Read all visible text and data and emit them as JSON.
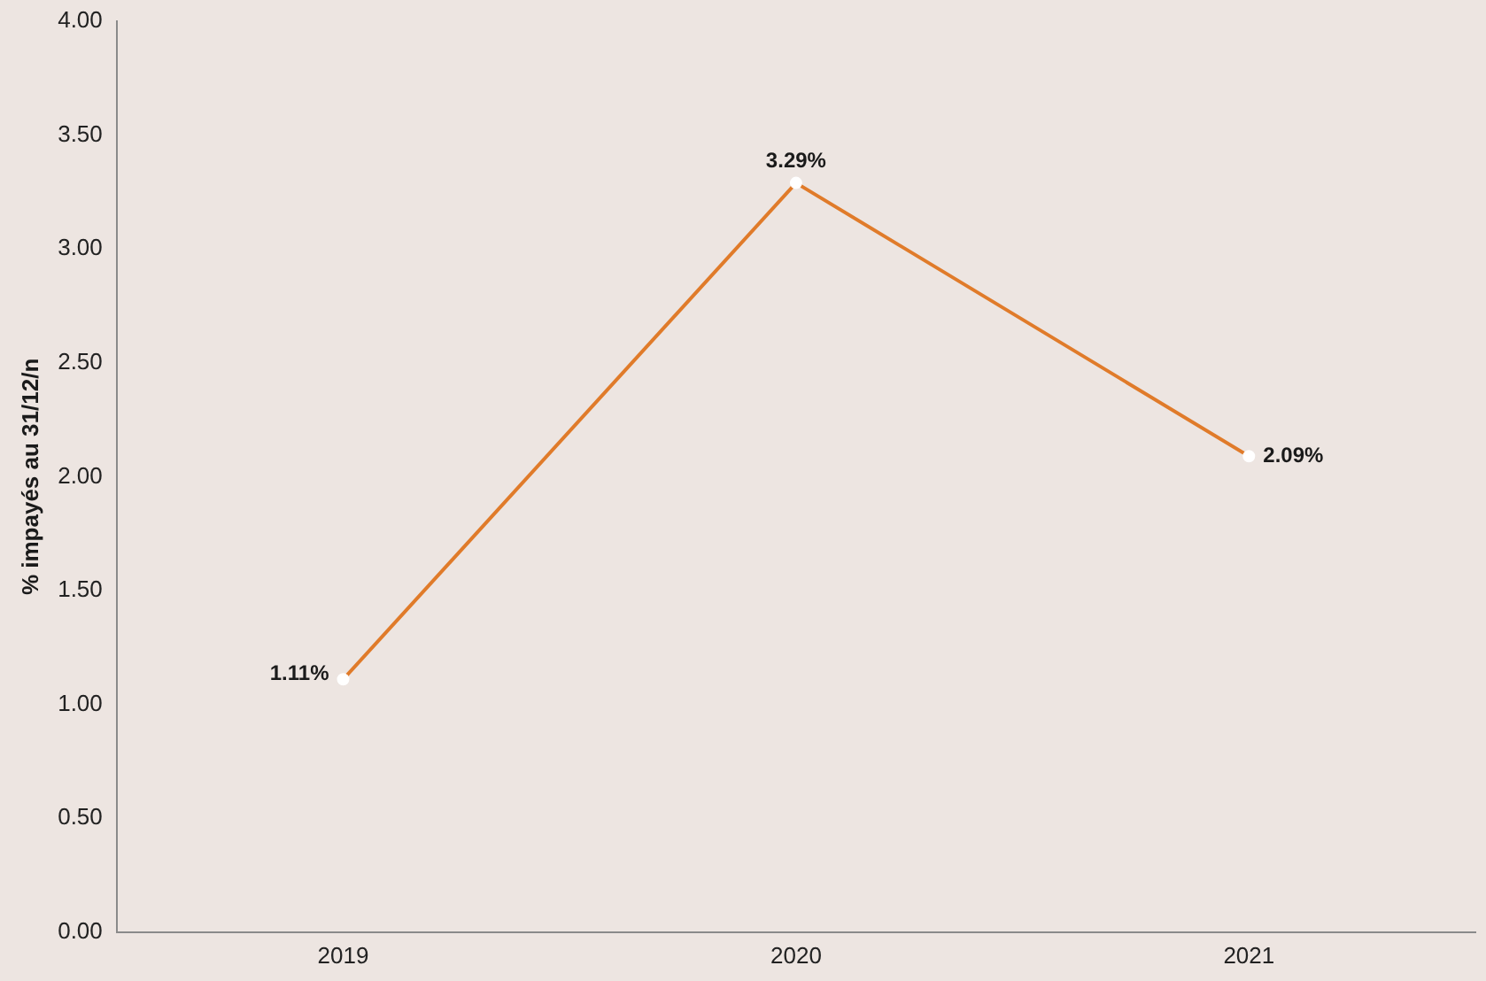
{
  "chart_data": {
    "type": "line",
    "ylabel": "% impayés au 31/12/n",
    "categories": [
      "2019",
      "2020",
      "2021"
    ],
    "series": [
      {
        "color": "#e07b2a",
        "values": [
          1.11,
          3.29,
          2.09
        ],
        "value_labels": [
          "1.11%",
          "3.29%",
          "2.09%"
        ]
      }
    ],
    "ylim": [
      0,
      4
    ],
    "yticks": [
      {
        "value": 0,
        "label": "0.00"
      },
      {
        "value": 0.5,
        "label": "0.50"
      },
      {
        "value": 1,
        "label": "1.00"
      },
      {
        "value": 1.5,
        "label": "1.50"
      },
      {
        "value": 2,
        "label": "2.00"
      },
      {
        "value": 2.5,
        "label": "2.50"
      },
      {
        "value": 3,
        "label": "3.00"
      },
      {
        "value": 3.5,
        "label": "3.50"
      },
      {
        "value": 4,
        "label": "4.00"
      }
    ],
    "grid": false,
    "legend": false,
    "marker": "circle",
    "line_style": "solid"
  }
}
